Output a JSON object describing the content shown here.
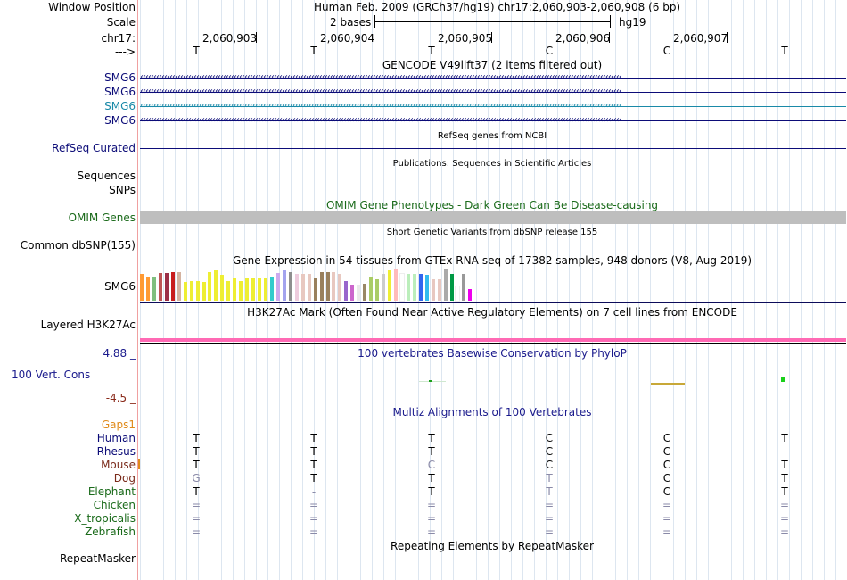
{
  "header": {
    "window_position_label": "Window Position",
    "assembly_position": "Human Feb. 2009 (GRCh37/hg19)   chr17:2,060,903-2,060,908 (6 bp)",
    "scale_label": "Scale",
    "scale_value": "2 bases",
    "scale_db": "hg19",
    "chrom_label": "chr17:",
    "strand_label": "--->",
    "coords": [
      "2,060,903",
      "2,060,904",
      "2,060,905",
      "2,060,906",
      "2,060,907"
    ],
    "bases": [
      "T",
      "T",
      "T",
      "C",
      "C",
      "T"
    ]
  },
  "gencode": {
    "title": "GENCODE V49lift37 (2 items filtered out)",
    "genes": [
      {
        "name": "SMG6",
        "color": "#0c0c78"
      },
      {
        "name": "SMG6",
        "color": "#0c0c78"
      },
      {
        "name": "SMG6",
        "color": "#1a8aa8"
      },
      {
        "name": "SMG6",
        "color": "#0c0c78"
      }
    ]
  },
  "refseq": {
    "title": "RefSeq genes from NCBI",
    "label": "RefSeq Curated",
    "color": "#0c0c78"
  },
  "publications": {
    "title": "Publications: Sequences in Scientific Articles",
    "label_sequences": "Sequences",
    "label_snps": "SNPs"
  },
  "omim": {
    "title": "OMIM Gene Phenotypes - Dark Green Can Be Disease-causing",
    "label": "OMIM Genes",
    "color": "#1a6a1a",
    "bar_color": "#bebebe"
  },
  "dbsnp": {
    "title": "Short Genetic Variants from dbSNP release 155",
    "label": "Common dbSNP(155)"
  },
  "gtex": {
    "title": "Gene Expression in 54 tissues from GTEx RNA-seq of 17382 samples, 948 donors (V8, Aug 2019)",
    "label": "SMG6",
    "bars": [
      {
        "v": 0.95,
        "c": "#ff9a33"
      },
      {
        "v": 0.85,
        "c": "#ff9a33"
      },
      {
        "v": 0.85,
        "c": "#7fbf7f"
      },
      {
        "v": 0.98,
        "c": "#bd5555"
      },
      {
        "v": 0.98,
        "c": "#9b2f47"
      },
      {
        "v": 1.0,
        "c": "#c81d1d"
      },
      {
        "v": 1.0,
        "c": "#d4b3a0"
      },
      {
        "v": 0.65,
        "c": "#eeee33"
      },
      {
        "v": 0.7,
        "c": "#eeee33"
      },
      {
        "v": 0.7,
        "c": "#eeee33"
      },
      {
        "v": 0.65,
        "c": "#eeee33"
      },
      {
        "v": 1.0,
        "c": "#eeee33"
      },
      {
        "v": 1.05,
        "c": "#eeee33"
      },
      {
        "v": 0.9,
        "c": "#eeee33"
      },
      {
        "v": 0.7,
        "c": "#eeee33"
      },
      {
        "v": 0.78,
        "c": "#eeee33"
      },
      {
        "v": 0.7,
        "c": "#eeee33"
      },
      {
        "v": 0.8,
        "c": "#eeee33"
      },
      {
        "v": 0.8,
        "c": "#eeee33"
      },
      {
        "v": 0.78,
        "c": "#eeee33"
      },
      {
        "v": 0.78,
        "c": "#eeee33"
      },
      {
        "v": 0.85,
        "c": "#33cccc"
      },
      {
        "v": 0.98,
        "c": "#ccaaee"
      },
      {
        "v": 1.05,
        "c": "#a3a3ee"
      },
      {
        "v": 1.0,
        "c": "#8e8e8e"
      },
      {
        "v": 0.95,
        "c": "#eeccdd"
      },
      {
        "v": 0.95,
        "c": "#e8c8c0"
      },
      {
        "v": 0.95,
        "c": "#e8c8c0"
      },
      {
        "v": 0.82,
        "c": "#99805d"
      },
      {
        "v": 1.0,
        "c": "#99805d"
      },
      {
        "v": 1.0,
        "c": "#99805d"
      },
      {
        "v": 1.0,
        "c": "#e8c8c0"
      },
      {
        "v": 0.95,
        "c": "#e8c8c0"
      },
      {
        "v": 0.7,
        "c": "#9966cc"
      },
      {
        "v": 0.55,
        "c": "#cc66cc"
      },
      {
        "v": 0.55,
        "c": "#eaeaea"
      },
      {
        "v": 0.6,
        "c": "#998866"
      },
      {
        "v": 0.85,
        "c": "#aacc66"
      },
      {
        "v": 0.75,
        "c": "#aacc66"
      },
      {
        "v": 0.95,
        "c": "#cccccc"
      },
      {
        "v": 1.05,
        "c": "#eeee33"
      },
      {
        "v": 1.15,
        "c": "#ffbbbb"
      },
      {
        "v": 0.95,
        "c": "#ffffff"
      },
      {
        "v": 0.95,
        "c": "#bbeebb"
      },
      {
        "v": 0.95,
        "c": "#bbeebb"
      },
      {
        "v": 0.95,
        "c": "#3366ee"
      },
      {
        "v": 0.9,
        "c": "#33bbee"
      },
      {
        "v": 0.75,
        "c": "#e8c8c0"
      },
      {
        "v": 0.75,
        "c": "#e8c8c0"
      },
      {
        "v": 1.15,
        "c": "#aaaaaa"
      },
      {
        "v": 0.95,
        "c": "#009944"
      },
      {
        "v": 0.5,
        "c": "#ffffff"
      },
      {
        "v": 0.95,
        "c": "#999999"
      },
      {
        "v": 0.4,
        "c": "#ee00ee"
      }
    ]
  },
  "h3k27ac": {
    "title": "H3K27Ac Mark (Often Found Near Active Regulatory Elements) on 7 cell lines from ENCODE",
    "label": "Layered H3K27Ac",
    "color": "#ff69b4"
  },
  "phylop": {
    "title": "100 vertebrates Basewise Conservation by PhyloP",
    "label": "100 Vert. Cons",
    "ymax": "4.88 _",
    "ymin": "-4.5 _",
    "color": "#1a1a8c",
    "min_color": "#8a2a1a"
  },
  "multiz": {
    "title": "Multiz Alignments of 100 Vertebrates",
    "gaps_label": "Gaps1",
    "gaps_color": "#e08a1a",
    "species": [
      {
        "name": "Human",
        "color": "#0c0c78",
        "bases": [
          "T",
          "T",
          "T",
          "C",
          "C",
          "T"
        ]
      },
      {
        "name": "Rhesus",
        "color": "#0c0c78",
        "bases": [
          "T",
          "T",
          "T",
          "C",
          "C",
          "-"
        ]
      },
      {
        "name": "Mouse",
        "color": "#7a2a1a",
        "bases": [
          "T",
          "T",
          "C",
          "C",
          "C",
          "T"
        ]
      },
      {
        "name": "Dog",
        "color": "#7a2a1a",
        "bases": [
          "G",
          "T",
          "T",
          "T",
          "C",
          "T"
        ]
      },
      {
        "name": "Elephant",
        "color": "#1a6a1a",
        "bases": [
          "T",
          "-",
          "T",
          "T",
          "C",
          "T"
        ]
      },
      {
        "name": "Chicken",
        "color": "#1a6a1a",
        "bases": [
          "=",
          "=",
          "=",
          "=",
          "=",
          "="
        ]
      },
      {
        "name": "X_tropicalis",
        "color": "#1a6a1a",
        "bases": [
          "=",
          "=",
          "=",
          "=",
          "=",
          "="
        ]
      },
      {
        "name": "Zebrafish",
        "color": "#1a6a1a",
        "bases": [
          "=",
          "=",
          "=",
          "=",
          "=",
          "="
        ]
      }
    ]
  },
  "repeatmasker": {
    "title": "Repeating Elements by RepeatMasker",
    "label": "RepeatMasker"
  }
}
